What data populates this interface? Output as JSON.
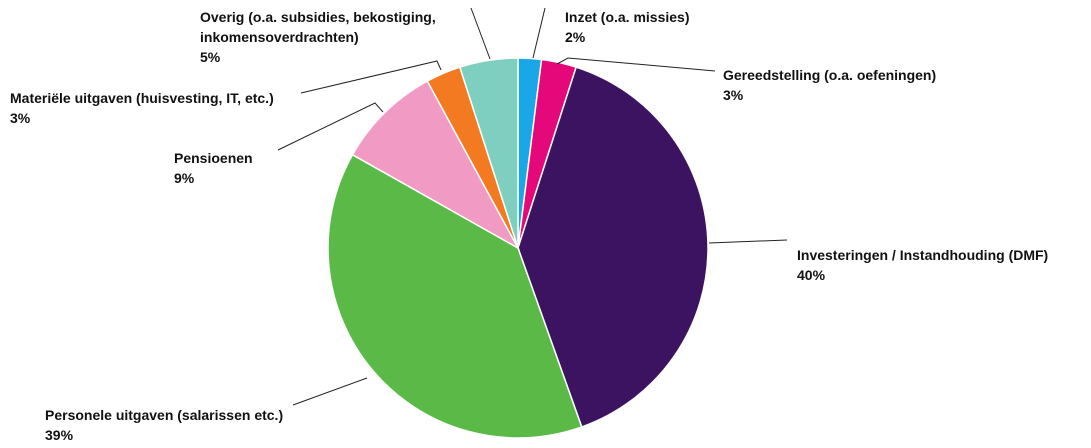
{
  "chart_data": {
    "type": "pie",
    "title": "",
    "slices": [
      {
        "label_lines": [
          "Inzet (o.a. missies)"
        ],
        "value_label": "2%",
        "value": 2,
        "color": "#1aa7e8"
      },
      {
        "label_lines": [
          "Gereedstelling (o.a. oefeningen)"
        ],
        "value_label": "3%",
        "value": 3,
        "color": "#e4087a"
      },
      {
        "label_lines": [
          "Investeringen / Instandhouding (DMF)"
        ],
        "value_label": "40%",
        "value": 40,
        "color": "#3b1360"
      },
      {
        "label_lines": [
          "Personele uitgaven (salarissen etc.)"
        ],
        "value_label": "39%",
        "value": 39,
        "color": "#5bba47"
      },
      {
        "label_lines": [
          "Pensioenen"
        ],
        "value_label": "9%",
        "value": 9,
        "color": "#f09ac4"
      },
      {
        "label_lines": [
          "Materiële uitgaven (huisvesting, IT, etc.)"
        ],
        "value_label": "3%",
        "value": 3,
        "color": "#f37a21"
      },
      {
        "label_lines": [
          "Overig (o.a. subsidies, bekostiging,",
          "inkomensoverdrachten)"
        ],
        "value_label": "5%",
        "value": 5,
        "color": "#7fcfc1"
      }
    ]
  }
}
